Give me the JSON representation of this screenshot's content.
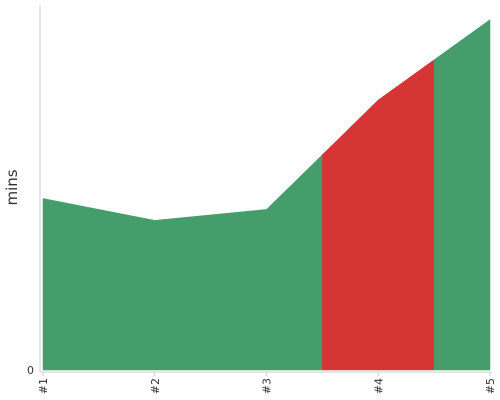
{
  "chart_data": {
    "type": "area",
    "categories": [
      "#1",
      "#2",
      "#3",
      "#4",
      "#5"
    ],
    "values": [
      47,
      41,
      44,
      74,
      96
    ],
    "ylabel": "mins",
    "xlabel": "",
    "ylim": [
      0,
      100
    ],
    "yticks": [
      0
    ],
    "grid": false,
    "legend": "none",
    "segments": [
      {
        "from": 0,
        "to": 2.5,
        "color": "#449d6a"
      },
      {
        "from": 2.5,
        "to": 3.5,
        "color": "#d63536"
      },
      {
        "from": 3.5,
        "to": 4,
        "color": "#449d6a"
      }
    ],
    "colors": {
      "default": "#449d6a",
      "highlight": "#d63536",
      "axis": "#cccccc",
      "text": "#333333"
    }
  }
}
